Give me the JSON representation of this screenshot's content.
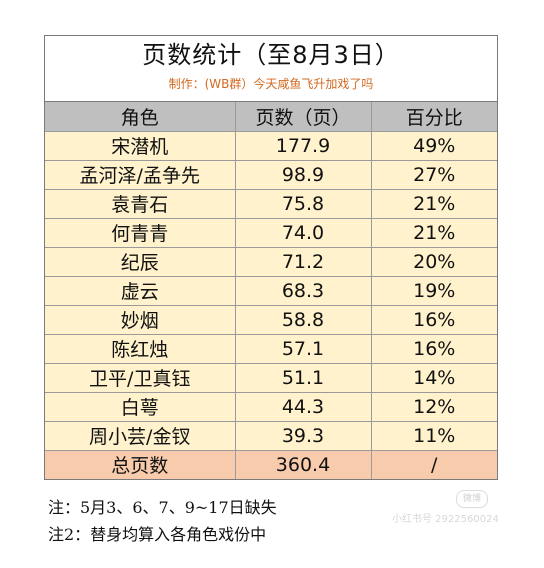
{
  "title": "页数统计（至8月3日）",
  "subtitle": "制作：(WB群）今天咸鱼飞升加戏了吗",
  "columns": [
    "角色",
    "页数（页）",
    "百分比"
  ],
  "rows": [
    {
      "role": "宋潜机",
      "pages": "177.9",
      "pct": "49%"
    },
    {
      "role": "孟河泽/孟争先",
      "pages": "98.9",
      "pct": "27%"
    },
    {
      "role": "袁青石",
      "pages": "75.8",
      "pct": "21%"
    },
    {
      "role": "何青青",
      "pages": "74.0",
      "pct": "21%"
    },
    {
      "role": "纪辰",
      "pages": "71.2",
      "pct": "20%"
    },
    {
      "role": "虚云",
      "pages": "68.3",
      "pct": "19%"
    },
    {
      "role": "妙烟",
      "pages": "58.8",
      "pct": "16%"
    },
    {
      "role": "陈红烛",
      "pages": "57.1",
      "pct": "16%"
    },
    {
      "role": "卫平/卫真钰",
      "pages": "51.1",
      "pct": "14%"
    },
    {
      "role": "白萼",
      "pages": "44.3",
      "pct": "12%"
    },
    {
      "role": "周小芸/金钗",
      "pages": "39.3",
      "pct": "11%"
    }
  ],
  "total": {
    "label": "总页数",
    "pages": "360.4",
    "pct": "/"
  },
  "notes": [
    "注：5月3、6、7、9~17日缺失",
    "注2：替身均算入各角色戏份中"
  ],
  "watermark": {
    "badge": "微博",
    "text": "小红书号 2922560024"
  },
  "colors": {
    "header_bg": "#bfbfbf",
    "row_bg": "#fff2cc",
    "total_bg": "#f8cbad",
    "subtitle": "#d2691e"
  }
}
